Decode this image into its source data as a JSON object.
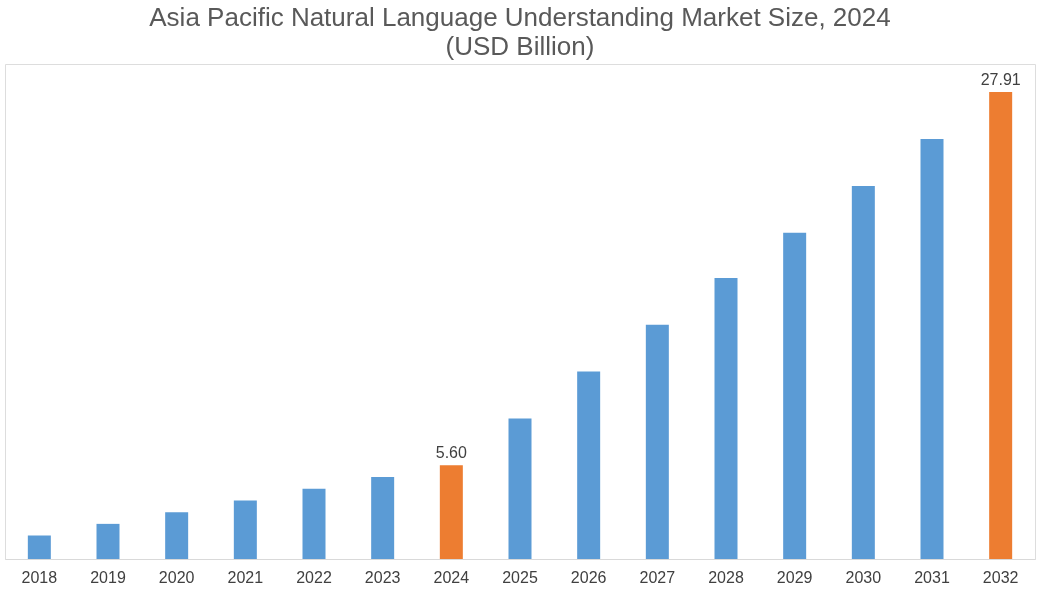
{
  "chart_data": {
    "type": "bar",
    "title": "Asia Pacific Natural Language Understanding Market Size, 2024",
    "subtitle": "(USD Billion)",
    "categories": [
      "2018",
      "2019",
      "2020",
      "2021",
      "2022",
      "2023",
      "2024",
      "2025",
      "2026",
      "2027",
      "2028",
      "2029",
      "2030",
      "2031",
      "2032"
    ],
    "values": [
      1.4,
      2.1,
      2.8,
      3.5,
      4.2,
      4.9,
      5.6,
      8.4,
      11.2,
      14.0,
      16.8,
      19.5,
      22.3,
      25.1,
      27.91
    ],
    "colors": [
      "#5b9bd5",
      "#5b9bd5",
      "#5b9bd5",
      "#5b9bd5",
      "#5b9bd5",
      "#5b9bd5",
      "#ed7d31",
      "#5b9bd5",
      "#5b9bd5",
      "#5b9bd5",
      "#5b9bd5",
      "#5b9bd5",
      "#5b9bd5",
      "#5b9bd5",
      "#ed7d31"
    ],
    "value_labels": [
      null,
      null,
      null,
      null,
      null,
      null,
      "5.60",
      null,
      null,
      null,
      null,
      null,
      null,
      null,
      "27.91"
    ],
    "tick_labels": "x",
    "grid": false
  }
}
